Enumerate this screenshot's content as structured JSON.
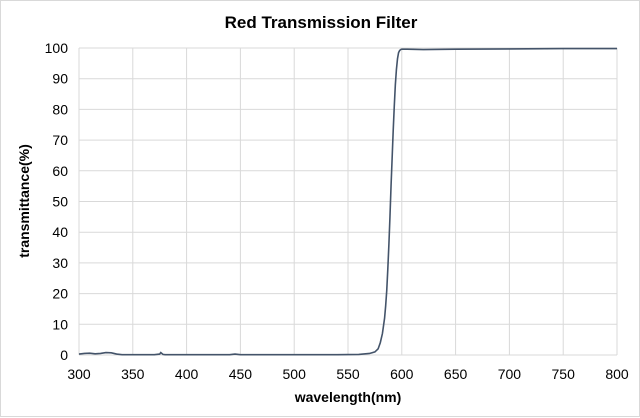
{
  "chart_data": {
    "type": "line",
    "title": "Red Transmission Filter",
    "xlabel": "wavelength(nm)",
    "ylabel": "transmittance(%)",
    "xlim": [
      300,
      800
    ],
    "ylim": [
      0,
      100
    ],
    "x_ticks": [
      300,
      350,
      400,
      450,
      500,
      550,
      600,
      650,
      700,
      750,
      800
    ],
    "y_ticks": [
      0,
      10,
      20,
      30,
      40,
      50,
      60,
      70,
      80,
      90,
      100
    ],
    "grid": true,
    "colors": {
      "series": "#44546a",
      "grid": "#d9d9d9"
    },
    "series": [
      {
        "x": [
          300,
          305,
          310,
          315,
          320,
          325,
          330,
          335,
          340,
          345,
          350,
          360,
          370,
          375,
          376,
          378,
          380,
          390,
          400,
          420,
          440,
          445,
          450,
          480,
          500,
          520,
          540,
          560,
          570,
          575,
          578,
          580,
          582,
          584,
          585,
          586,
          587,
          588,
          589,
          590,
          591,
          592,
          593,
          594,
          595,
          596,
          597,
          598,
          599,
          600,
          605,
          620,
          650,
          700,
          750,
          800
        ],
        "y": [
          0.3,
          0.5,
          0.6,
          0.4,
          0.5,
          0.8,
          0.7,
          0.3,
          0.1,
          0.1,
          0.1,
          0.1,
          0.1,
          0.3,
          0.8,
          0.2,
          0.1,
          0.1,
          0.1,
          0.1,
          0.1,
          0.3,
          0.1,
          0.1,
          0.1,
          0.1,
          0.1,
          0.2,
          0.5,
          1,
          2,
          4,
          7,
          12,
          16,
          21,
          28,
          36,
          45,
          55,
          64,
          73,
          81,
          88,
          93,
          96.5,
          98.5,
          99.2,
          99.5,
          99.6,
          99.6,
          99.5,
          99.6,
          99.7,
          99.8,
          99.8
        ]
      }
    ]
  }
}
